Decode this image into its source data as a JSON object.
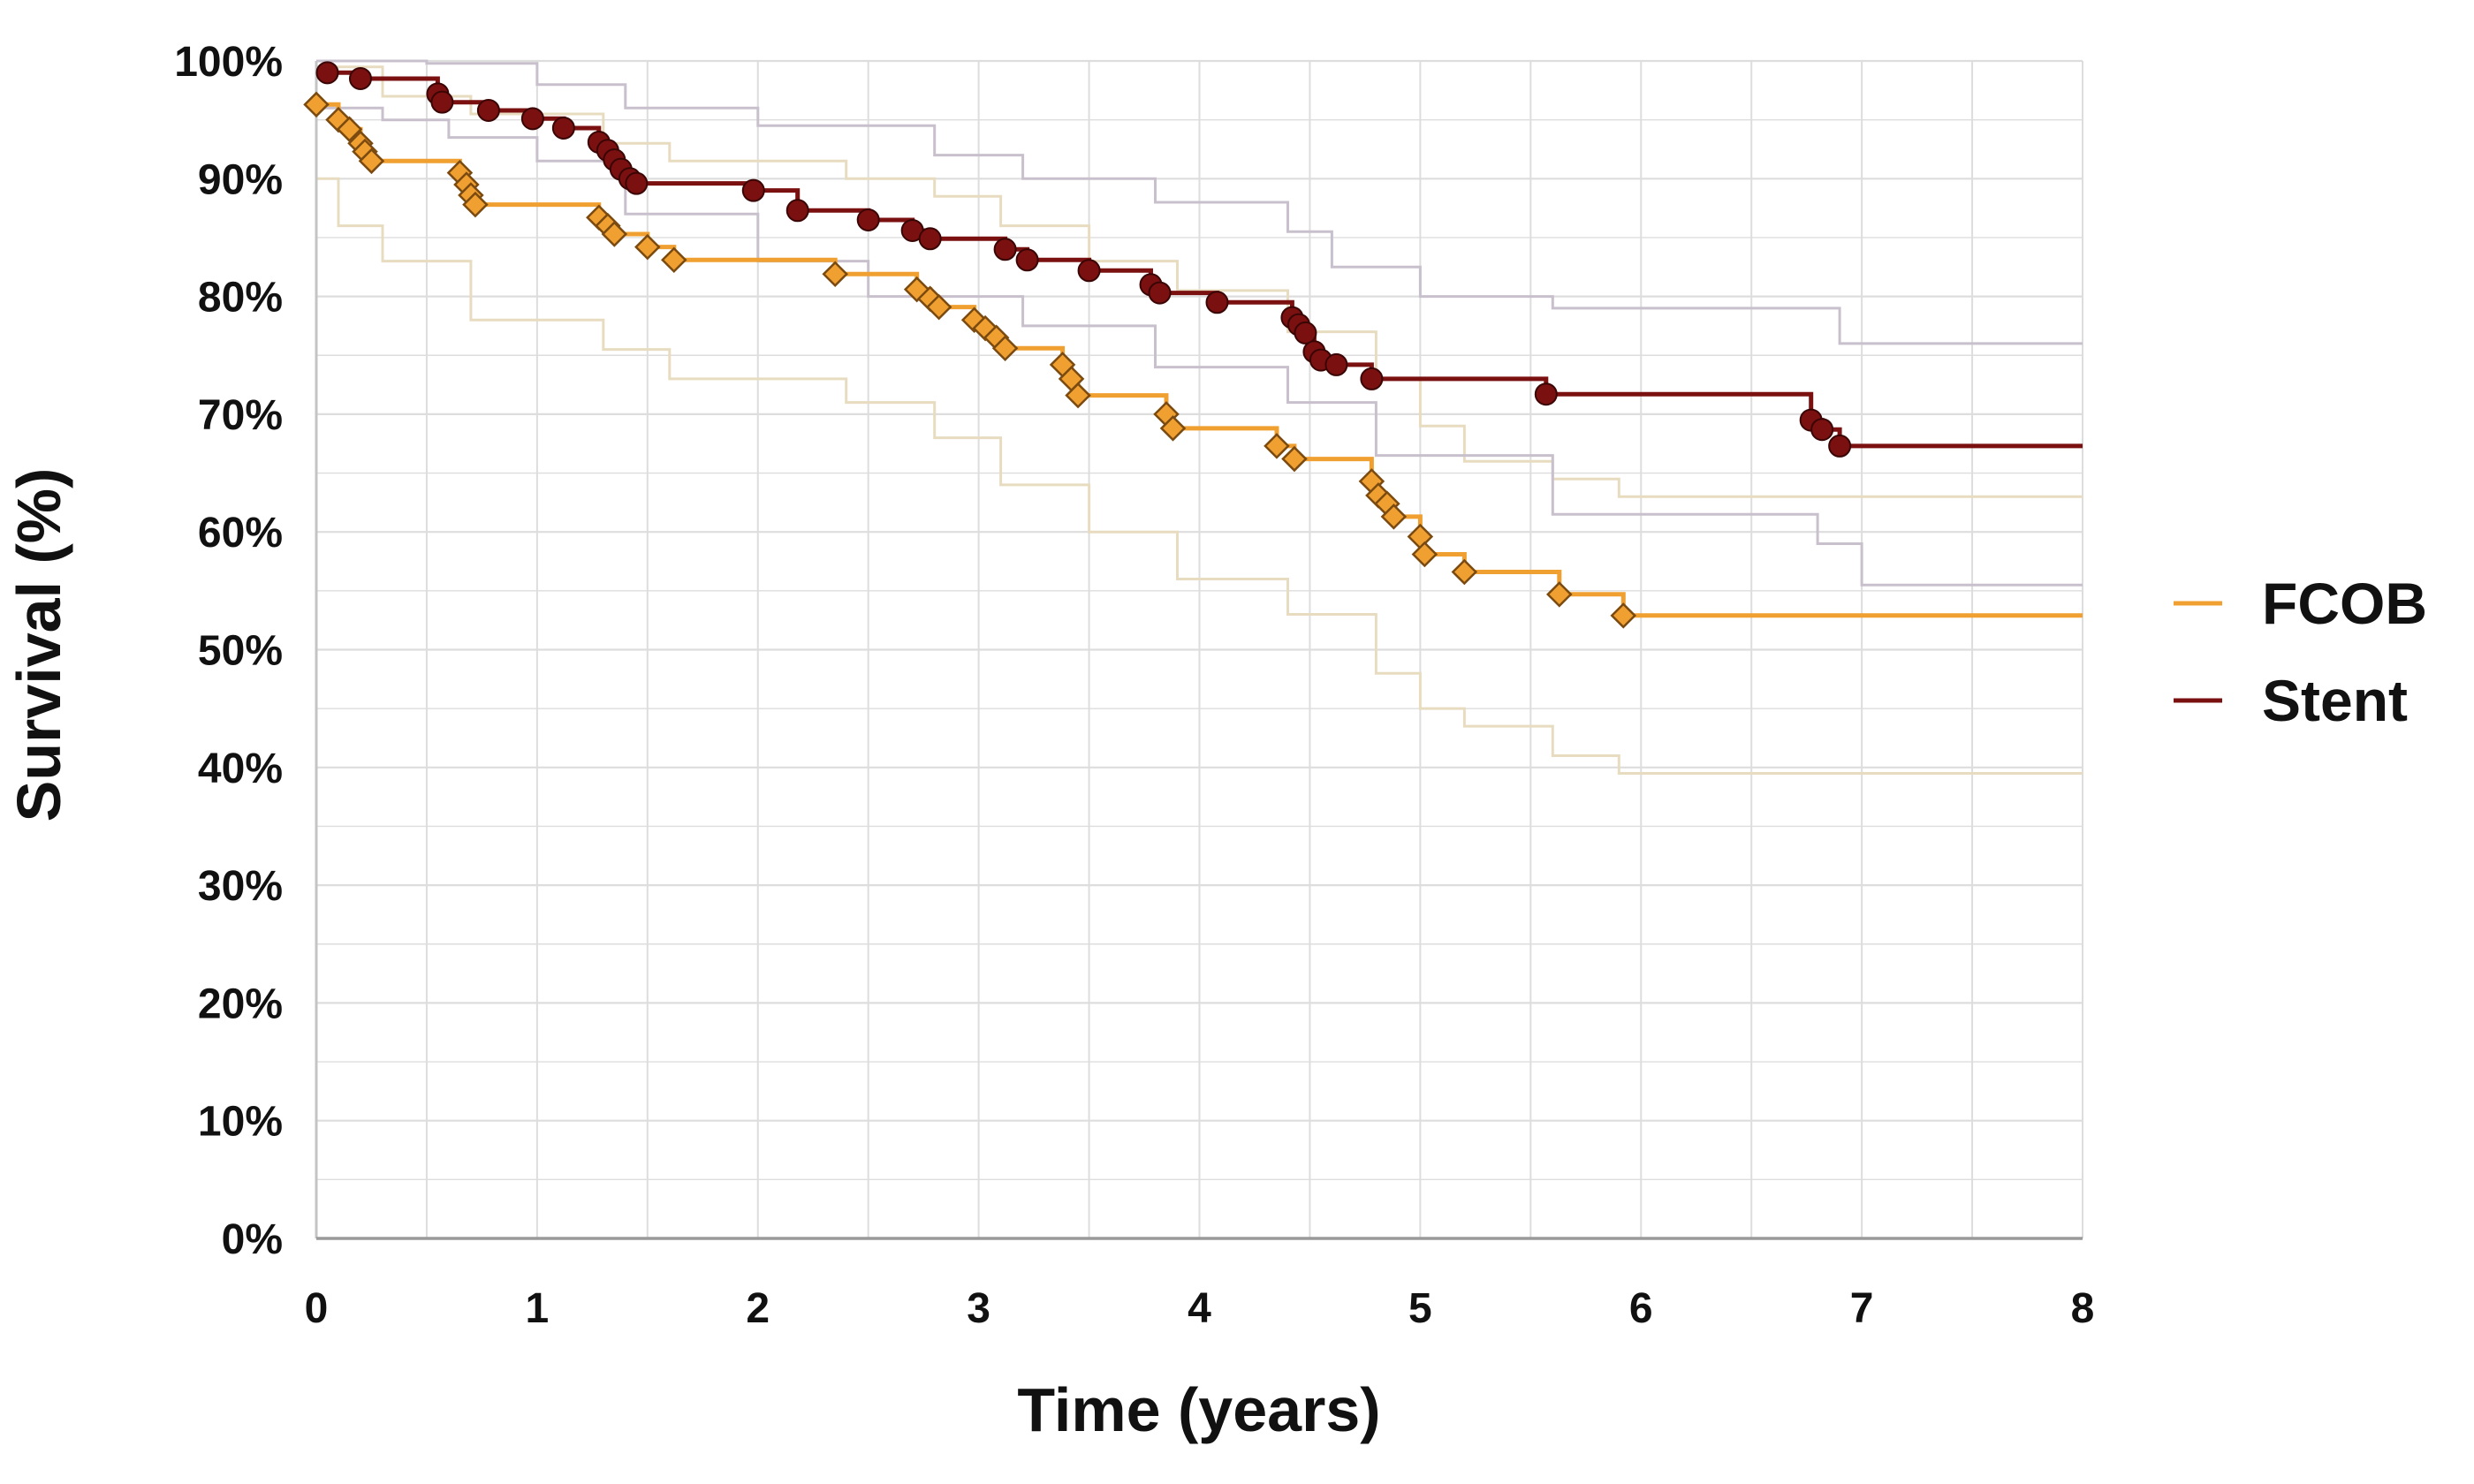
{
  "chart_data": {
    "type": "line",
    "xlabel": "Time (years)",
    "ylabel": "Survival (%)",
    "xlim": [
      0,
      8
    ],
    "ylim": [
      0,
      100
    ],
    "x_ticks": [
      "0",
      "1",
      "2",
      "3",
      "4",
      "5",
      "6",
      "7",
      "8"
    ],
    "y_ticks": [
      "0%",
      "10%",
      "20%",
      "30%",
      "40%",
      "50%",
      "60%",
      "70%",
      "80%",
      "90%",
      "100%"
    ],
    "grid": true,
    "legend_position": "right",
    "step": true,
    "colors": {
      "FCOB": "#f0a030",
      "Stent": "#7a1010",
      "FCOB_ci": "#e8dcc0",
      "Stent_ci": "#c8c0cc",
      "grid": "#dddddd"
    },
    "series": [
      {
        "name": "FCOB",
        "color": "#f0a030",
        "x": [
          0,
          0.1,
          0.15,
          0.2,
          0.22,
          0.25,
          0.65,
          0.68,
          0.7,
          0.72,
          1.28,
          1.32,
          1.35,
          1.5,
          1.62,
          2.35,
          2.72,
          2.78,
          2.82,
          2.98,
          3.03,
          3.08,
          3.12,
          3.38,
          3.42,
          3.45,
          3.85,
          3.88,
          4.35,
          4.43,
          4.78,
          4.81,
          4.85,
          4.88,
          5.0,
          5.02,
          5.2,
          5.63,
          5.92,
          8.0
        ],
        "y": [
          96.3,
          95,
          94.2,
          93,
          92.3,
          91.5,
          90.5,
          89.5,
          88.6,
          87.8,
          86.7,
          86.0,
          85.3,
          84.2,
          83.1,
          81.9,
          80.6,
          79.8,
          79.1,
          78.0,
          77.3,
          76.5,
          75.6,
          74.2,
          73.0,
          71.6,
          70.0,
          68.8,
          67.3,
          66.2,
          64.3,
          63.1,
          62.4,
          61.3,
          59.6,
          58.1,
          56.6,
          54.7,
          52.9,
          52.9
        ],
        "censor_x": [
          0,
          0.1,
          0.15,
          0.2,
          0.22,
          0.25,
          0.65,
          0.68,
          0.7,
          0.72,
          1.28,
          1.32,
          1.35,
          1.5,
          1.62,
          2.35,
          2.72,
          2.78,
          2.82,
          2.98,
          3.03,
          3.08,
          3.12,
          3.38,
          3.42,
          3.45,
          3.85,
          3.88,
          4.35,
          4.43,
          4.78,
          4.81,
          4.85,
          4.88,
          5.0,
          5.02,
          5.2,
          5.63,
          5.92
        ],
        "ci_upper_x": [
          0,
          0.3,
          0.7,
          1.3,
          1.6,
          2.4,
          2.8,
          3.1,
          3.5,
          3.9,
          4.4,
          4.8,
          5.0,
          5.2,
          5.6,
          5.9,
          8.0
        ],
        "ci_upper_y": [
          99.5,
          97,
          95.5,
          93,
          91.5,
          90,
          88.5,
          86,
          83,
          80.5,
          77,
          73,
          69,
          66,
          64.5,
          63,
          63
        ],
        "ci_lower_x": [
          0,
          0.1,
          0.3,
          0.7,
          1.3,
          1.6,
          2.4,
          2.8,
          3.1,
          3.5,
          3.9,
          4.4,
          4.8,
          5.0,
          5.2,
          5.6,
          5.9,
          8.0
        ],
        "ci_lower_y": [
          90,
          86,
          83,
          78,
          75.5,
          73,
          71,
          68,
          64,
          60,
          56,
          53,
          48,
          45,
          43.5,
          41,
          39.5,
          39.5
        ]
      },
      {
        "name": "Stent",
        "color": "#7a1010",
        "x": [
          0,
          0.05,
          0.2,
          0.55,
          0.57,
          0.78,
          0.98,
          1.12,
          1.28,
          1.32,
          1.35,
          1.38,
          1.42,
          1.45,
          1.98,
          2.18,
          2.5,
          2.7,
          2.78,
          3.12,
          3.22,
          3.5,
          3.78,
          3.82,
          4.08,
          4.42,
          4.45,
          4.48,
          4.52,
          4.55,
          4.62,
          4.78,
          5.57,
          6.77,
          6.82,
          6.9,
          8.0
        ],
        "y": [
          99.0,
          99.0,
          98.5,
          97.2,
          96.5,
          95.8,
          95.1,
          94.3,
          93.1,
          92.4,
          91.6,
          90.8,
          90.0,
          89.6,
          89.0,
          87.3,
          86.5,
          85.6,
          84.9,
          84.0,
          83.1,
          82.2,
          81.0,
          80.3,
          79.5,
          78.2,
          77.6,
          76.9,
          75.3,
          74.6,
          74.2,
          73.0,
          71.7,
          69.5,
          68.7,
          67.3,
          67.3
        ],
        "censor_x": [
          0.05,
          0.2,
          0.55,
          0.57,
          0.78,
          0.98,
          1.12,
          1.28,
          1.32,
          1.35,
          1.38,
          1.42,
          1.45,
          1.98,
          2.18,
          2.5,
          2.7,
          2.78,
          3.12,
          3.22,
          3.5,
          3.78,
          3.82,
          4.08,
          4.42,
          4.45,
          4.48,
          4.52,
          4.55,
          4.62,
          4.78,
          5.57,
          6.77,
          6.82,
          6.9
        ],
        "ci_upper_x": [
          0,
          0.5,
          1.0,
          1.4,
          2.0,
          2.8,
          3.2,
          3.8,
          4.4,
          4.6,
          5.0,
          5.6,
          6.9,
          8.0
        ],
        "ci_upper_y": [
          100,
          99.8,
          98,
          96,
          94.5,
          92,
          90,
          88,
          85.5,
          82.5,
          80,
          79,
          76,
          76
        ],
        "ci_lower_x": [
          0,
          0.3,
          0.6,
          1.0,
          1.4,
          2.0,
          2.5,
          3.2,
          3.8,
          4.4,
          4.8,
          5.6,
          6.8,
          7.0,
          8.0
        ],
        "ci_lower_y": [
          96,
          95,
          93.5,
          91.5,
          87,
          83,
          80,
          77.5,
          74,
          71,
          66.5,
          61.5,
          59,
          55.5,
          55.5
        ]
      }
    ]
  }
}
